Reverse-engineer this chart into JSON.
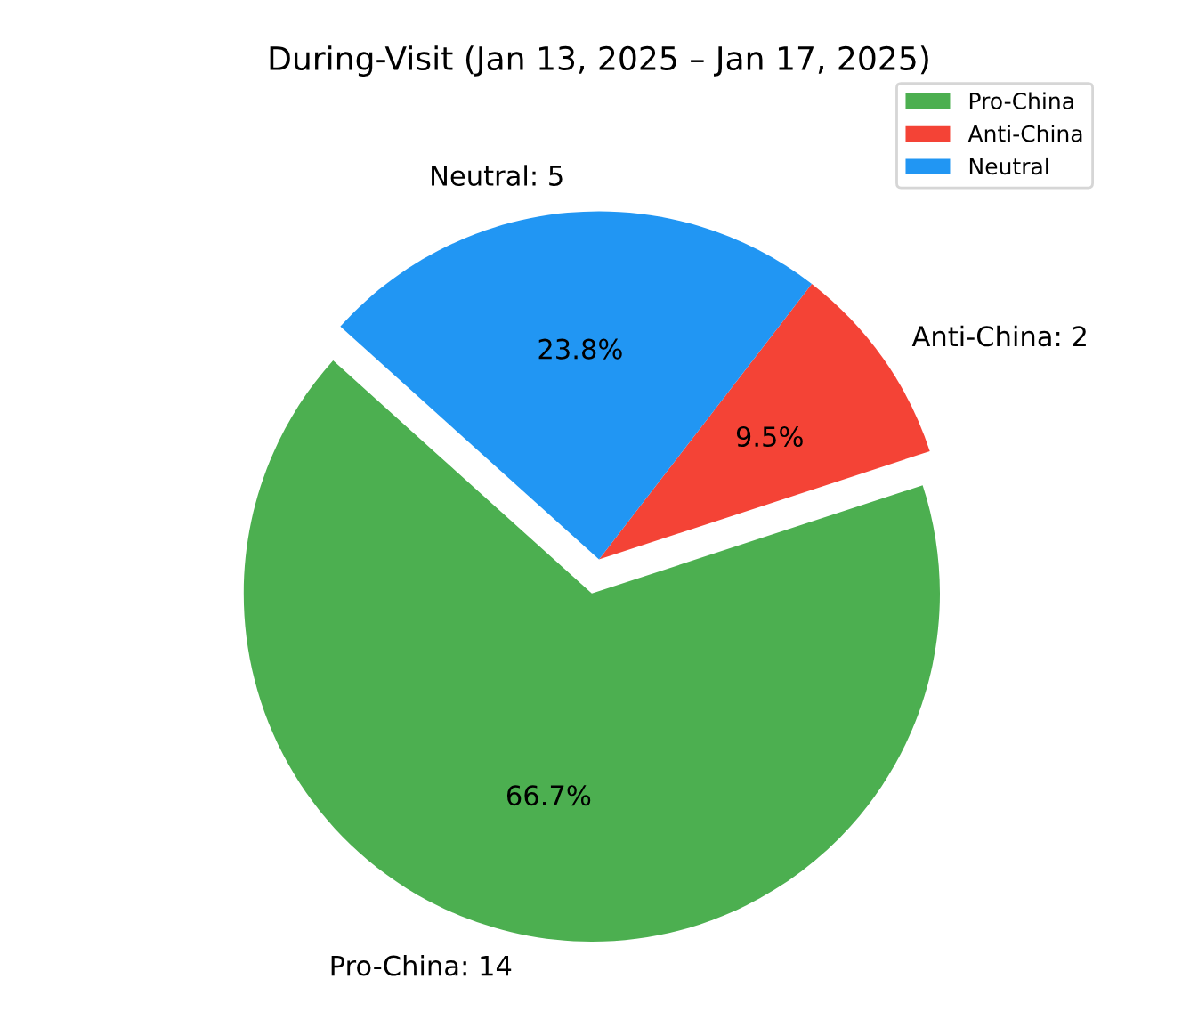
{
  "chart_data": {
    "type": "pie",
    "title": "During-Visit (Jan 13, 2025 – Jan 17, 2025)",
    "categories": [
      "Pro-China",
      "Anti-China",
      "Neutral"
    ],
    "values": [
      66.7,
      9.5,
      23.8
    ],
    "colors": [
      "#4caf50",
      "#f44336",
      "#2196f3"
    ],
    "value_labels": [
      "66.7%",
      "9.5%",
      "23.8%"
    ],
    "annotations": [
      "Pro-China: 14",
      "Anti-China: 2",
      "Neutral: 5"
    ],
    "legend": "top right"
  }
}
